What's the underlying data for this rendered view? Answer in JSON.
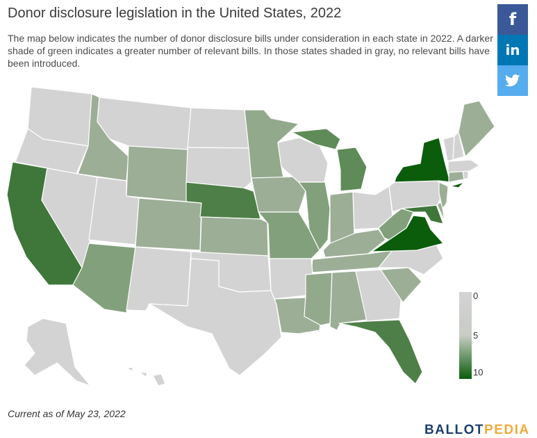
{
  "header": {
    "title": "Donor disclosure legislation in the United States, 2022",
    "description": "The map below indicates the number of donor disclosure bills under consideration in each state in 2022. A darker shade of green indicates a greater number of relevant bills. In those states shaded in gray, no relevant bills have been introduced."
  },
  "social": {
    "facebook_label": "f",
    "linkedin_label": "in",
    "twitter_label": "🐦"
  },
  "legend": {
    "min_label": "0",
    "mid_label": "5",
    "max_label": "10",
    "color_min": "#d3d3d3",
    "color_mid": "#c8cdc4",
    "color_max": "#0b5d0b"
  },
  "colors": {
    "none": "#d3d3d3",
    "level_1": "#9cae96",
    "level_2": "#93a98c",
    "level_3": "#82a07c",
    "level_4": "#5e8b57",
    "level_5": "#4f7f48",
    "level_6": "#3f763a",
    "max": "#0b5d0b",
    "border": "#ffffff"
  },
  "footer": {
    "note": "Current as of May 23, 2022",
    "brand_part1": "BALLOT",
    "brand_part2": "PEDIA"
  }
}
